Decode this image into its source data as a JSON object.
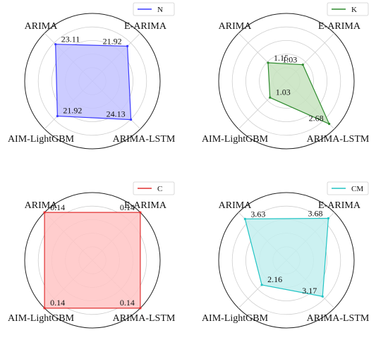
{
  "chart_data": [
    {
      "type": "radar",
      "axes": [
        "ARIMA",
        "E-ARIMA",
        "ARIMA-LSTM",
        "AIM-LightGBM"
      ],
      "series": [
        {
          "name": "N",
          "values": [
            23.11,
            21.92,
            24.13,
            21.92
          ]
        }
      ],
      "value_labels": [
        "23.11",
        "21.92",
        "24.13",
        "21.92"
      ],
      "rmax": 30,
      "color": "#3b3bff",
      "fill": "#c3c3ff",
      "legend_position": "top-right"
    },
    {
      "type": "radar",
      "axes": [
        "ARIMA",
        "E-ARIMA",
        "ARIMA-LSTM",
        "AIM-LightGBM"
      ],
      "series": [
        {
          "name": "K",
          "values": [
            1.15,
            1.03,
            2.68,
            1.03
          ]
        }
      ],
      "value_labels": [
        "1.15",
        "1.03",
        "2.68",
        "1.03"
      ],
      "rmax": 3.0,
      "color": "#2e8b2e",
      "fill": "#c7e3c0",
      "legend_position": "top-right"
    },
    {
      "type": "radar",
      "axes": [
        "ARIMA",
        "E-ARIMA",
        "ARIMA-LSTM",
        "AIM-LightGBM"
      ],
      "series": [
        {
          "name": "C",
          "values": [
            0.14,
            0.14,
            0.14,
            0.14
          ]
        }
      ],
      "value_labels": [
        "0.14",
        "0.14",
        "0.14",
        "0.14"
      ],
      "rmax": 0.14,
      "color": "#e03030",
      "fill": "#ffc4c4",
      "legend_position": "top-right"
    },
    {
      "type": "radar",
      "axes": [
        "ARIMA",
        "E-ARIMA",
        "ARIMA-LSTM",
        "AIM-LightGBM"
      ],
      "series": [
        {
          "name": "CM",
          "values": [
            3.63,
            3.68,
            3.17,
            2.16
          ]
        }
      ],
      "value_labels": [
        "3.63",
        "3.68",
        "3.17",
        "2.16"
      ],
      "rmax": 4.2,
      "color": "#22c4c4",
      "fill": "#c3eeee",
      "legend_position": "top-right"
    }
  ]
}
